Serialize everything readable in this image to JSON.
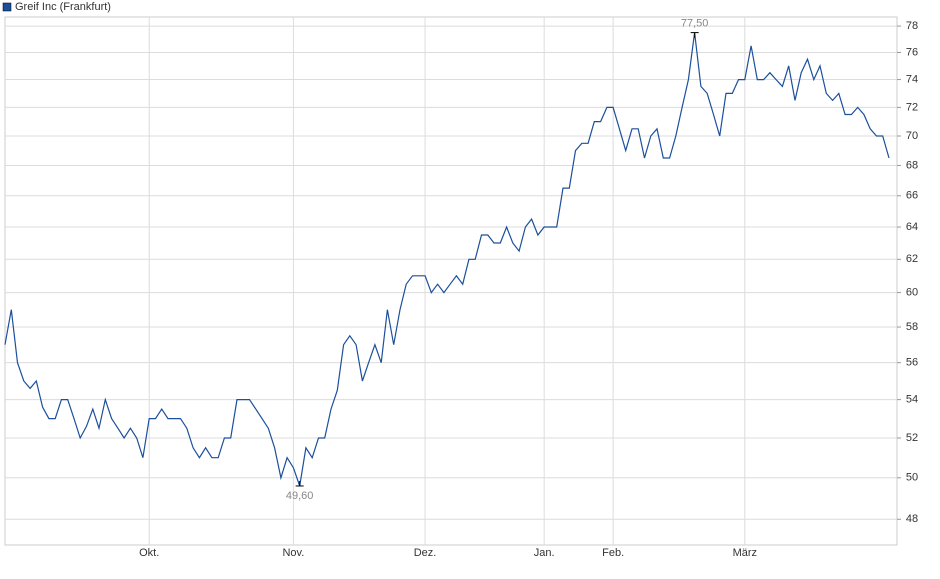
{
  "chart_data": {
    "type": "line",
    "series": [
      {
        "name": "Greif Inc (Frankfurt)",
        "color": "#1c4f9c",
        "values": [
          57,
          59,
          56,
          55,
          54.6,
          55,
          53.6,
          53,
          53,
          54,
          54,
          53,
          52,
          52.6,
          53.5,
          52.5,
          54,
          53,
          52.5,
          52,
          52.5,
          52,
          51,
          53,
          53,
          53.5,
          53,
          53,
          53,
          52.5,
          51.5,
          51,
          51.5,
          51,
          51,
          52,
          52,
          54,
          54,
          54,
          53.5,
          53,
          52.5,
          51.5,
          50,
          51,
          50.5,
          49.6,
          51.5,
          51,
          52,
          52,
          53.5,
          54.5,
          57,
          57.5,
          57,
          55,
          56,
          57,
          56,
          59,
          57,
          59,
          60.5,
          61,
          61,
          61,
          60,
          60.5,
          60,
          60.5,
          61,
          60.5,
          62,
          62,
          63.5,
          63.5,
          63,
          63,
          64,
          63,
          62.5,
          64,
          64.5,
          63.5,
          64,
          64,
          64,
          66.5,
          66.5,
          69,
          69.5,
          69.5,
          71,
          71,
          72,
          72,
          70.5,
          69,
          70.5,
          70.5,
          68.5,
          70,
          70.5,
          68.5,
          68.5,
          70,
          72,
          74,
          77.5,
          73.5,
          73,
          71.5,
          70,
          73,
          73,
          74,
          74,
          76.5,
          74,
          74,
          74.5,
          74,
          73.5,
          75,
          72.5,
          74.5,
          75.5,
          74,
          75,
          73,
          72.5,
          73,
          71.5,
          71.5,
          72,
          71.5,
          70.5,
          70,
          70,
          68.5
        ],
        "value_labels": [
          null,
          null,
          null,
          null,
          null,
          null,
          null,
          null,
          null,
          null,
          null,
          null,
          null,
          null,
          null,
          null,
          null,
          null,
          null,
          null,
          null,
          null,
          null,
          null,
          null,
          null,
          null,
          null,
          null,
          null,
          null,
          null,
          null,
          null,
          null,
          null,
          null,
          null,
          null,
          null,
          null,
          null,
          null,
          null,
          null,
          null,
          null,
          "49,60",
          null,
          null,
          null,
          null,
          null,
          null,
          null,
          null,
          null,
          null,
          null,
          null,
          null,
          null,
          null,
          null,
          null,
          null,
          null,
          null,
          null,
          null,
          null,
          null,
          null,
          null,
          null,
          null,
          null,
          null,
          null,
          null,
          null,
          null,
          null,
          null,
          null,
          null,
          null,
          null,
          null,
          null,
          null,
          null,
          null,
          null,
          null,
          null,
          null,
          null,
          null,
          null,
          null,
          null,
          null,
          null,
          null,
          null,
          null,
          null,
          null,
          null,
          "77,50",
          null,
          null,
          null,
          null,
          null,
          null,
          null,
          null,
          null,
          null,
          null,
          null,
          null,
          null,
          null,
          null,
          null,
          null,
          null,
          null,
          null,
          null,
          null,
          null,
          null,
          null,
          null,
          null,
          null,
          null,
          null
        ]
      }
    ],
    "categories": [
      null,
      null,
      null,
      null,
      null,
      null,
      null,
      null,
      null,
      null,
      null,
      null,
      null,
      null,
      null,
      null,
      null,
      null,
      null,
      null,
      null,
      null,
      null,
      "Okt.",
      null,
      null,
      null,
      null,
      null,
      null,
      null,
      null,
      null,
      null,
      null,
      null,
      null,
      null,
      null,
      null,
      null,
      null,
      null,
      null,
      null,
      null,
      "Nov.",
      null,
      null,
      null,
      null,
      null,
      null,
      null,
      null,
      null,
      null,
      null,
      null,
      null,
      null,
      null,
      null,
      null,
      null,
      null,
      null,
      "Dez.",
      null,
      null,
      null,
      null,
      null,
      null,
      null,
      null,
      null,
      null,
      null,
      null,
      null,
      null,
      null,
      null,
      null,
      null,
      "Jan.",
      null,
      null,
      null,
      null,
      null,
      null,
      null,
      null,
      null,
      null,
      "Feb.",
      null,
      null,
      null,
      null,
      null,
      null,
      null,
      null,
      null,
      null,
      null,
      null,
      null,
      null,
      null,
      null,
      null,
      null,
      null,
      null,
      "März",
      null,
      null,
      null,
      null,
      null,
      null,
      null,
      null,
      null,
      null,
      null,
      null,
      null,
      null,
      null,
      null,
      null,
      null,
      null,
      null,
      null,
      null,
      null
    ],
    "ylim": [
      46.8,
      78.7
    ],
    "yticks": [
      48,
      50,
      52,
      54,
      56,
      58,
      60,
      62,
      64,
      66,
      68,
      70,
      72,
      74,
      76,
      78
    ],
    "log_y": true,
    "grid": true
  }
}
